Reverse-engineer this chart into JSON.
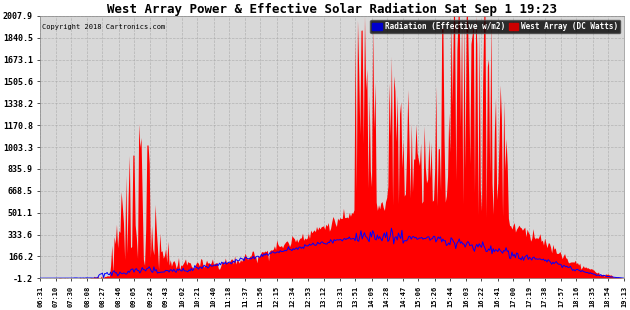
{
  "title": "West Array Power & Effective Solar Radiation Sat Sep 1 19:23",
  "copyright": "Copyright 2018 Cartronics.com",
  "legend_blue": "Radiation (Effective w/m2)",
  "legend_red": "West Array (DC Watts)",
  "yticks": [
    2007.9,
    1840.5,
    1673.1,
    1505.6,
    1338.2,
    1170.8,
    1003.3,
    835.9,
    668.5,
    501.1,
    333.6,
    166.2,
    -1.2
  ],
  "ymin": -1.2,
  "ymax": 2007.9,
  "xtick_labels": [
    "06:31",
    "07:10",
    "07:30",
    "08:08",
    "08:27",
    "08:46",
    "09:05",
    "09:24",
    "09:43",
    "10:02",
    "10:21",
    "10:40",
    "11:18",
    "11:37",
    "11:56",
    "12:15",
    "12:34",
    "12:53",
    "13:12",
    "13:31",
    "13:51",
    "14:09",
    "14:28",
    "14:47",
    "15:06",
    "15:26",
    "15:44",
    "16:03",
    "16:22",
    "16:41",
    "17:00",
    "17:19",
    "17:38",
    "17:57",
    "18:16",
    "18:35",
    "18:54",
    "19:13"
  ],
  "plot_bg_color": "#d8d8d8",
  "grid_color": "#aaaaaa",
  "red_color": "#ff0000",
  "blue_color": "#0000ff",
  "fig_bg": "#ffffff",
  "legend_blue_bg": "#0000cc",
  "legend_red_bg": "#cc0000"
}
